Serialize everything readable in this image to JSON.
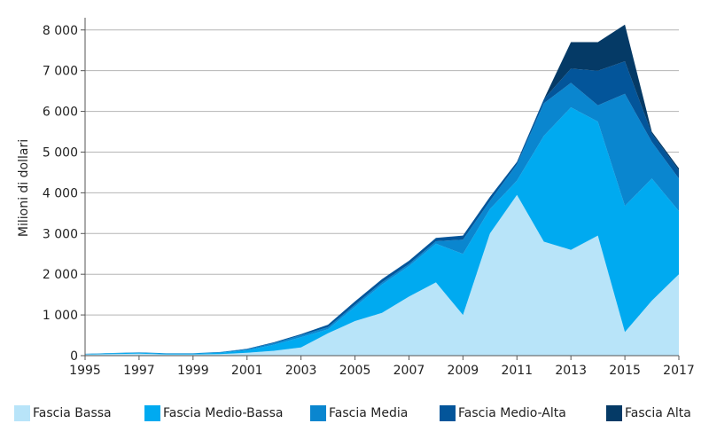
{
  "chart_data": {
    "type": "area",
    "stacked": true,
    "title": "",
    "xlabel": "",
    "ylabel": "Milioni di dollari",
    "x": [
      1995,
      1996,
      1997,
      1998,
      1999,
      2000,
      2001,
      2002,
      2003,
      2004,
      2005,
      2006,
      2007,
      2008,
      2009,
      2010,
      2011,
      2012,
      2013,
      2014,
      2015,
      2016,
      2017
    ],
    "x_ticks": [
      1995,
      1997,
      1999,
      2001,
      2003,
      2005,
      2007,
      2009,
      2011,
      2013,
      2015,
      2017
    ],
    "x_tick_labels": [
      "1995",
      "1997",
      "1999",
      "2001",
      "2003",
      "2005",
      "2007",
      "2009",
      "2011",
      "2013",
      "2015",
      "2017"
    ],
    "y_ticks": [
      0,
      1000,
      2000,
      3000,
      4000,
      5000,
      6000,
      7000,
      8000
    ],
    "y_tick_labels": [
      "0",
      "1 000",
      "2 000",
      "3 000",
      "4 000",
      "5 000",
      "6 000",
      "7 000",
      "8 000"
    ],
    "ylim": [
      0,
      8300
    ],
    "grid": "horizontal",
    "legend_position": "bottom",
    "series": [
      {
        "name": "Fascia Bassa",
        "color": "#b8e4f9",
        "values": [
          30,
          40,
          50,
          30,
          30,
          40,
          70,
          120,
          200,
          550,
          850,
          1050,
          1450,
          1800,
          1000,
          3000,
          3950,
          2800,
          2600,
          2950,
          580,
          1350,
          2000
        ]
      },
      {
        "name": "Fascia Medio-Bassa",
        "color": "#00aaf0",
        "values": [
          10,
          20,
          20,
          20,
          20,
          30,
          60,
          150,
          250,
          100,
          350,
          700,
          750,
          950,
          1500,
          600,
          350,
          2600,
          3500,
          2800,
          3100,
          3000,
          1550
        ]
      },
      {
        "name": "Fascia Media",
        "color": "#0a86cf",
        "values": [
          5,
          5,
          10,
          10,
          10,
          20,
          30,
          40,
          50,
          50,
          50,
          50,
          50,
          60,
          350,
          200,
          400,
          800,
          600,
          400,
          2750,
          900,
          800
        ]
      },
      {
        "name": "Fascia Medio-Alta",
        "color": "#03559a",
        "values": [
          0,
          0,
          0,
          0,
          0,
          0,
          10,
          20,
          30,
          60,
          80,
          80,
          80,
          80,
          100,
          100,
          60,
          100,
          350,
          850,
          800,
          200,
          200
        ]
      },
      {
        "name": "Fascia Alta",
        "color": "#053a66",
        "values": [
          0,
          0,
          0,
          0,
          0,
          0,
          0,
          0,
          0,
          0,
          0,
          0,
          0,
          0,
          0,
          0,
          0,
          0,
          650,
          700,
          900,
          50,
          50
        ]
      }
    ]
  }
}
